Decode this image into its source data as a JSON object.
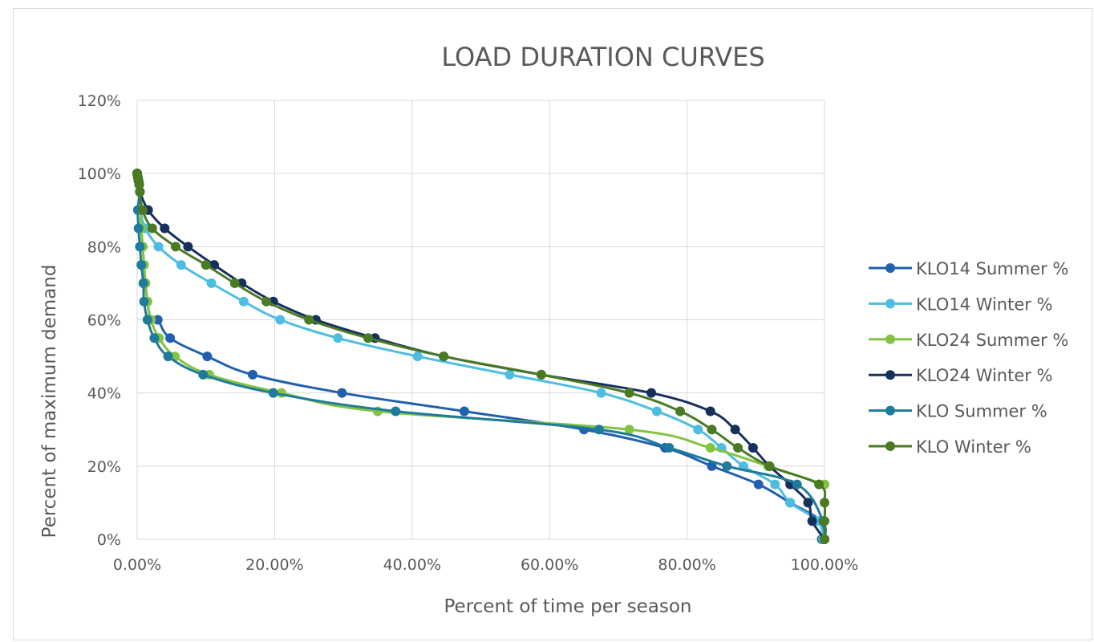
{
  "chart_data": {
    "type": "line",
    "title": "LOAD DURATION CURVES",
    "xlabel": "Percent of time per season",
    "ylabel": "Percent of maximum demand",
    "xlim": [
      0,
      100
    ],
    "ylim": [
      0,
      120
    ],
    "x_ticks": [
      "0.00%",
      "20.00%",
      "40.00%",
      "60.00%",
      "80.00%",
      "100.00%"
    ],
    "y_ticks": [
      "0%",
      "20%",
      "40%",
      "60%",
      "80%",
      "100%",
      "120%"
    ],
    "grid": true,
    "legend_position": "right",
    "series": [
      {
        "name": "KLO14 Summer  %",
        "color": "#2160ae",
        "points": [
          [
            0,
            100
          ],
          [
            0.1,
            99
          ],
          [
            0.2,
            98
          ],
          [
            0.3,
            97
          ],
          [
            0.4,
            95
          ],
          [
            0.5,
            90
          ],
          [
            0.6,
            85
          ],
          [
            0.8,
            80
          ],
          [
            1.0,
            75
          ],
          [
            1.2,
            70
          ],
          [
            1.5,
            65
          ],
          [
            2,
            60
          ],
          [
            3,
            60
          ],
          [
            4.8,
            55
          ],
          [
            10.2,
            50
          ],
          [
            16.8,
            45
          ],
          [
            29.8,
            40
          ],
          [
            47.6,
            35
          ],
          [
            65,
            30
          ],
          [
            76.8,
            25
          ],
          [
            83.6,
            20
          ],
          [
            90.4,
            15
          ],
          [
            95,
            10
          ],
          [
            99.4,
            5
          ],
          [
            99.6,
            0
          ]
        ]
      },
      {
        "name": "KLO14 Winter  %",
        "color": "#4dbde2",
        "points": [
          [
            0,
            100
          ],
          [
            0.1,
            99
          ],
          [
            0.2,
            98
          ],
          [
            0.3,
            97
          ],
          [
            0.4,
            95
          ],
          [
            0.5,
            90
          ],
          [
            1.2,
            85
          ],
          [
            3.1,
            80
          ],
          [
            6.4,
            75
          ],
          [
            10.8,
            70
          ],
          [
            15.5,
            65
          ],
          [
            20.8,
            60
          ],
          [
            29.2,
            55
          ],
          [
            40.8,
            50
          ],
          [
            54.2,
            45
          ],
          [
            67.5,
            40
          ],
          [
            75.6,
            35
          ],
          [
            81.6,
            30
          ],
          [
            85,
            25
          ],
          [
            88.2,
            20
          ],
          [
            92.8,
            15
          ],
          [
            95,
            10
          ],
          [
            99,
            5
          ],
          [
            99.8,
            0
          ]
        ]
      },
      {
        "name": "KLO24 Summer  %",
        "color": "#84c341",
        "points": [
          [
            0,
            100
          ],
          [
            0.1,
            99
          ],
          [
            0.2,
            98
          ],
          [
            0.3,
            97
          ],
          [
            0.4,
            95
          ],
          [
            0.5,
            90
          ],
          [
            0.6,
            85
          ],
          [
            0.8,
            80
          ],
          [
            1.0,
            75
          ],
          [
            1.2,
            70
          ],
          [
            1.5,
            65
          ],
          [
            2,
            60
          ],
          [
            3.2,
            55
          ],
          [
            5.5,
            50
          ],
          [
            10.5,
            45
          ],
          [
            21,
            40
          ],
          [
            35,
            35
          ],
          [
            71.6,
            30
          ],
          [
            83.4,
            25
          ],
          [
            91.8,
            20
          ],
          [
            100,
            15
          ]
        ]
      },
      {
        "name": "KLO24 Winter  %",
        "color": "#16305e",
        "points": [
          [
            0,
            100
          ],
          [
            0.1,
            99
          ],
          [
            0.2,
            98
          ],
          [
            0.3,
            97
          ],
          [
            0.4,
            95
          ],
          [
            1.6,
            90
          ],
          [
            4,
            85
          ],
          [
            7.4,
            80
          ],
          [
            11.2,
            75
          ],
          [
            15.2,
            70
          ],
          [
            19.8,
            65
          ],
          [
            26,
            60
          ],
          [
            34.6,
            55
          ],
          [
            44.6,
            50
          ],
          [
            58.8,
            45
          ],
          [
            74.8,
            40
          ],
          [
            83.4,
            35
          ],
          [
            87,
            30
          ],
          [
            89.6,
            25
          ],
          [
            92,
            20
          ],
          [
            95,
            15
          ],
          [
            97.6,
            10
          ],
          [
            98.2,
            5
          ],
          [
            100,
            0
          ]
        ]
      },
      {
        "name": "KLO Summer  %",
        "color": "#1f7b9c",
        "points": [
          [
            0,
            100
          ],
          [
            0.1,
            99
          ],
          [
            0.2,
            98
          ],
          [
            0.3,
            97
          ],
          [
            0.4,
            95
          ],
          [
            0.1,
            90
          ],
          [
            0.2,
            85
          ],
          [
            0.4,
            80
          ],
          [
            0.6,
            75
          ],
          [
            0.9,
            70
          ],
          [
            1,
            65
          ],
          [
            1.5,
            60
          ],
          [
            2.5,
            55
          ],
          [
            4.5,
            50
          ],
          [
            9.6,
            45
          ],
          [
            19.8,
            40
          ],
          [
            37.6,
            35
          ],
          [
            67.2,
            30
          ],
          [
            77.4,
            25
          ],
          [
            85.8,
            20
          ],
          [
            96,
            15
          ],
          [
            99.8,
            5
          ],
          [
            100,
            0
          ]
        ]
      },
      {
        "name": "KLO Winter  %",
        "color": "#4a7a24",
        "points": [
          [
            0,
            100
          ],
          [
            0.1,
            99
          ],
          [
            0.2,
            98
          ],
          [
            0.3,
            97
          ],
          [
            0.4,
            95
          ],
          [
            0.8,
            90
          ],
          [
            2.2,
            85
          ],
          [
            5.6,
            80
          ],
          [
            10,
            75
          ],
          [
            14.2,
            70
          ],
          [
            18.8,
            65
          ],
          [
            25,
            60
          ],
          [
            33.6,
            55
          ],
          [
            44.6,
            50
          ],
          [
            58.8,
            45
          ],
          [
            71.6,
            40
          ],
          [
            79,
            35
          ],
          [
            83.6,
            30
          ],
          [
            87.4,
            25
          ],
          [
            92,
            20
          ],
          [
            99.2,
            15
          ],
          [
            100,
            10
          ],
          [
            100,
            5
          ],
          [
            100,
            0
          ]
        ]
      }
    ]
  }
}
